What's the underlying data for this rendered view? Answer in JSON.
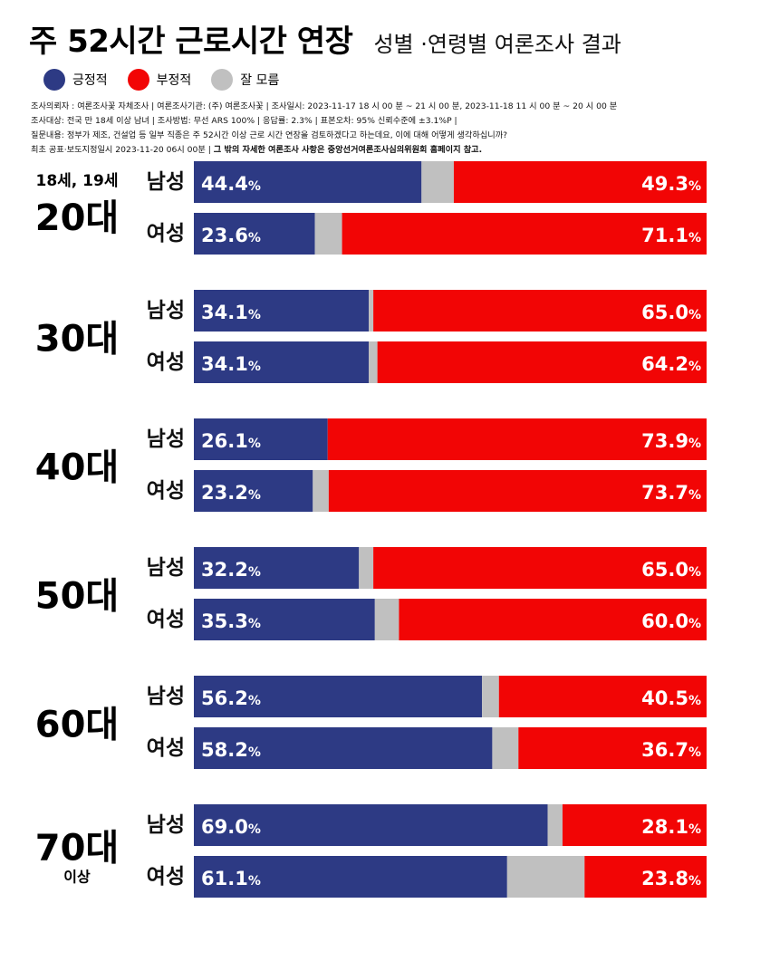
{
  "header": {
    "title": "주 52시간 근로시간 연장",
    "subtitle": "성별 ·연령별  여론조사 결과"
  },
  "legend": [
    {
      "label": "긍정적",
      "color": "#2d3a84"
    },
    {
      "label": "부정적",
      "color": "#f20505"
    },
    {
      "label": "잘 모름",
      "color": "#c0c0c0"
    }
  ],
  "meta": {
    "line1": "조사의뢰자 : 여론조사꽃 자체조사 | 여론조사기관: (주) 여론조사꽃 | 조사일시: 2023-11-17   18 시 00 분 ~ 21 시 00 분, 2023-11-18   11 시 00 분 ~ 20 시 00 분",
    "line2": "조사대상: 전국 만 18세 이상 남녀 | 조사방법: 무선 ARS 100% | 응답률: 2.3% | 표본오차: 95% 신뢰수준에 ±3.1%P |",
    "line3": "질문내용: 정부가 제조, 건설업 등 일부 직종은 주 52시간 이상 근로 시간 연장을 검토하겠다고 하는데요, 이에 대해 어떻게 생각하십니까?",
    "line4a": "최초 공표·보도지정일시  2023-11-20 06시 00분 | ",
    "line4b": "그 밖의 자세한 여론조사 사항은 중앙선거여론조사심의위원회 홈페이지 참고."
  },
  "chart_data": {
    "type": "bar",
    "orientation": "horizontal-stacked-100",
    "title": "주 52시간 근로시간 연장 성별 ·연령별 여론조사 결과",
    "series_order": [
      "긍정적",
      "잘 모름",
      "부정적"
    ],
    "unit": "%",
    "groups": [
      {
        "age": "20대",
        "age_top": "18세, 19세",
        "age_bottom": "",
        "rows": [
          {
            "gender": "남성",
            "positive": 44.4,
            "negative": 49.3
          },
          {
            "gender": "여성",
            "positive": 23.6,
            "negative": 71.1
          }
        ]
      },
      {
        "age": "30대",
        "age_top": "",
        "age_bottom": "",
        "rows": [
          {
            "gender": "남성",
            "positive": 34.1,
            "negative": 65.0
          },
          {
            "gender": "여성",
            "positive": 34.1,
            "negative": 64.2
          }
        ]
      },
      {
        "age": "40대",
        "age_top": "",
        "age_bottom": "",
        "rows": [
          {
            "gender": "남성",
            "positive": 26.1,
            "negative": 73.9
          },
          {
            "gender": "여성",
            "positive": 23.2,
            "negative": 73.7
          }
        ]
      },
      {
        "age": "50대",
        "age_top": "",
        "age_bottom": "",
        "rows": [
          {
            "gender": "남성",
            "positive": 32.2,
            "negative": 65.0
          },
          {
            "gender": "여성",
            "positive": 35.3,
            "negative": 60.0
          }
        ]
      },
      {
        "age": "60대",
        "age_top": "",
        "age_bottom": "",
        "rows": [
          {
            "gender": "남성",
            "positive": 56.2,
            "negative": 40.5
          },
          {
            "gender": "여성",
            "positive": 58.2,
            "negative": 36.7
          }
        ]
      },
      {
        "age": "70대",
        "age_top": "",
        "age_bottom": "이상",
        "rows": [
          {
            "gender": "남성",
            "positive": 69.0,
            "negative": 28.1
          },
          {
            "gender": "여성",
            "positive": 61.1,
            "negative": 23.8
          }
        ]
      }
    ]
  }
}
